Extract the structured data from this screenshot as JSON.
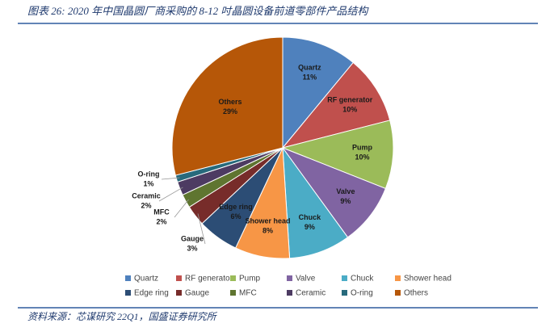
{
  "title": "图表 26:  2020 年中国晶圆厂商采购的 8-12 吋晶圆设备前道零部件产品结构",
  "source": "资料来源：芯谋研究 22Q1，国盛证券研究所",
  "chart_data": {
    "type": "pie",
    "categories": [
      "Quartz",
      "RF generator",
      "Pump",
      "Valve",
      "Chuck",
      "Shower head",
      "Edge ring",
      "Gauge",
      "MFC",
      "Ceramic",
      "O-ring",
      "Others"
    ],
    "values": [
      11,
      10,
      10,
      9,
      9,
      8,
      6,
      3,
      2,
      2,
      1,
      29
    ],
    "value_labels": [
      "11%",
      "10%",
      "10%",
      "9%",
      "9%",
      "8%",
      "6%",
      "3%",
      "2%",
      "2%",
      "1%",
      "29%"
    ],
    "colors": [
      "#4f81bd",
      "#c0504d",
      "#9bbb59",
      "#8064a2",
      "#4bacc6",
      "#f79646",
      "#2c4d75",
      "#772c2a",
      "#5f7530",
      "#4d3b62",
      "#276a7c",
      "#b65708"
    ],
    "legend": "bottom"
  }
}
